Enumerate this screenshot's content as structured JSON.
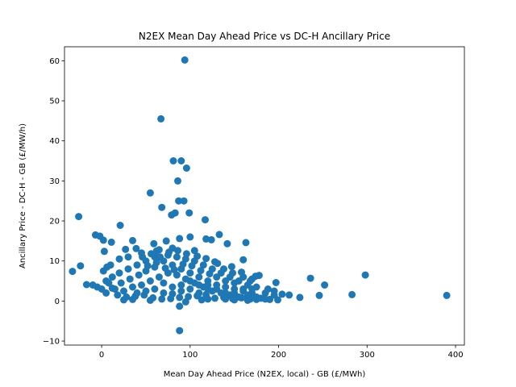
{
  "chart_data": {
    "type": "scatter",
    "title": "N2EX Mean Day Ahead Price vs DC-H Ancillary Price",
    "xlabel": "Mean Day Ahead Price (N2EX, local) - GB (£/MWh)",
    "ylabel": "Ancillary Price - DC-H - GB (£/MW/h)",
    "xlim": [
      -42,
      410
    ],
    "ylim": [
      -11,
      63.5
    ],
    "xticks": [
      0,
      100,
      200,
      300,
      400
    ],
    "yticks": [
      -10,
      0,
      10,
      20,
      30,
      40,
      50,
      60
    ],
    "grid": false,
    "color": "#1f77b4",
    "points": [
      [
        94,
        60.2
      ],
      [
        67,
        45.5
      ],
      [
        81,
        35
      ],
      [
        90,
        35
      ],
      [
        96,
        33.2
      ],
      [
        86,
        30
      ],
      [
        55,
        27
      ],
      [
        87,
        25
      ],
      [
        93,
        25
      ],
      [
        68,
        23.4
      ],
      [
        99,
        22
      ],
      [
        79,
        21.5
      ],
      [
        83,
        22
      ],
      [
        -26,
        21.1
      ],
      [
        117,
        20.3
      ],
      [
        21,
        18.9
      ],
      [
        -7,
        16.5
      ],
      [
        -2,
        16.2
      ],
      [
        35,
        15.1
      ],
      [
        2,
        15.2
      ],
      [
        11,
        14.7
      ],
      [
        88,
        15.6
      ],
      [
        100,
        16
      ],
      [
        133,
        16.6
      ],
      [
        118,
        15.5
      ],
      [
        124,
        15.3
      ],
      [
        142,
        14.3
      ],
      [
        163,
        14.6
      ],
      [
        59,
        14.3
      ],
      [
        73,
        15
      ],
      [
        80,
        13.2
      ],
      [
        -24,
        8.8
      ],
      [
        -33,
        7.4
      ],
      [
        -17,
        4.1
      ],
      [
        3,
        12.4
      ],
      [
        27,
        12.9
      ],
      [
        39,
        13.1
      ],
      [
        62,
        12.5
      ],
      [
        105,
        12.6
      ],
      [
        131,
        9.4
      ],
      [
        147,
        8.6
      ],
      [
        160,
        10.3
      ],
      [
        178,
        6.4
      ],
      [
        188,
        3
      ],
      [
        197,
        4.6
      ],
      [
        204,
        1.7
      ],
      [
        212,
        1.5
      ],
      [
        224,
        0.9
      ],
      [
        236,
        5.7
      ],
      [
        246,
        1.4
      ],
      [
        252,
        4
      ],
      [
        283,
        1.6
      ],
      [
        298,
        6.5
      ],
      [
        390,
        1.4
      ],
      [
        88,
        -7.4
      ],
      [
        88,
        -1.3
      ],
      [
        113,
        0.3
      ],
      [
        120,
        0.5
      ],
      [
        95,
        -0.2
      ],
      [
        5,
        5
      ],
      [
        12,
        6
      ],
      [
        20,
        7
      ],
      [
        30,
        8
      ],
      [
        40,
        9
      ],
      [
        50,
        10
      ],
      [
        60,
        11
      ],
      [
        70,
        10
      ],
      [
        80,
        9
      ],
      [
        90,
        8
      ],
      [
        100,
        7
      ],
      [
        110,
        6
      ],
      [
        120,
        5
      ],
      [
        130,
        4
      ],
      [
        140,
        3.5
      ],
      [
        150,
        3
      ],
      [
        160,
        2.5
      ],
      [
        170,
        2
      ],
      [
        5,
        2
      ],
      [
        15,
        3
      ],
      [
        25,
        2.5
      ],
      [
        35,
        3.5
      ],
      [
        45,
        4
      ],
      [
        55,
        5
      ],
      [
        65,
        6
      ],
      [
        75,
        7
      ],
      [
        85,
        6.5
      ],
      [
        95,
        5.5
      ],
      [
        105,
        4.5
      ],
      [
        115,
        3.5
      ],
      [
        125,
        2.5
      ],
      [
        135,
        2
      ],
      [
        145,
        1.5
      ],
      [
        155,
        1
      ],
      [
        165,
        1.5
      ],
      [
        175,
        1
      ],
      [
        10,
        9
      ],
      [
        20,
        10.5
      ],
      [
        30,
        11
      ],
      [
        45,
        12
      ],
      [
        65,
        12.8
      ],
      [
        75,
        11.5
      ],
      [
        85,
        11
      ],
      [
        95,
        10.5
      ],
      [
        105,
        10
      ],
      [
        115,
        9
      ],
      [
        125,
        8
      ],
      [
        135,
        7
      ],
      [
        145,
        6
      ],
      [
        155,
        5
      ],
      [
        165,
        4
      ],
      [
        175,
        3.5
      ],
      [
        0,
        3
      ],
      [
        8,
        4.5
      ],
      [
        18,
        1.5
      ],
      [
        28,
        1
      ],
      [
        38,
        1.2
      ],
      [
        48,
        1.5
      ],
      [
        58,
        0.8
      ],
      [
        68,
        0.5
      ],
      [
        78,
        0.6
      ],
      [
        88,
        0.9
      ],
      [
        98,
        1.1
      ],
      [
        108,
        1.3
      ],
      [
        118,
        1.6
      ],
      [
        128,
        0.7
      ],
      [
        138,
        0.9
      ],
      [
        148,
        0.6
      ],
      [
        158,
        0.8
      ],
      [
        168,
        0.5
      ],
      [
        180,
        0.7
      ],
      [
        190,
        0.4
      ],
      [
        199,
        0.3
      ],
      [
        -5,
        3.5
      ],
      [
        -10,
        4
      ],
      [
        2,
        7.5
      ],
      [
        6,
        8.5
      ],
      [
        50,
        7.5
      ],
      [
        60,
        8.5
      ],
      [
        70,
        4.5
      ],
      [
        80,
        3.5
      ],
      [
        90,
        2.5
      ],
      [
        100,
        3
      ],
      [
        110,
        2
      ],
      [
        120,
        3
      ],
      [
        130,
        6
      ],
      [
        140,
        5
      ],
      [
        150,
        4.5
      ],
      [
        160,
        6
      ],
      [
        170,
        5.5
      ],
      [
        185,
        2
      ],
      [
        195,
        2.5
      ],
      [
        185,
        0.5
      ],
      [
        195,
        1.5
      ],
      [
        72,
        8.2
      ],
      [
        82,
        7.8
      ],
      [
        92,
        9.2
      ],
      [
        102,
        8.8
      ],
      [
        112,
        7.6
      ],
      [
        122,
        6.8
      ],
      [
        62,
        9.6
      ],
      [
        52,
        8.8
      ],
      [
        42,
        6.5
      ],
      [
        32,
        5.5
      ],
      [
        22,
        4.5
      ],
      [
        12,
        3.2
      ],
      [
        40,
        2
      ],
      [
        50,
        2.5
      ],
      [
        60,
        3
      ],
      [
        70,
        2
      ],
      [
        80,
        1.8
      ],
      [
        90,
        4
      ],
      [
        100,
        5
      ],
      [
        110,
        4
      ],
      [
        120,
        4
      ],
      [
        130,
        3
      ],
      [
        140,
        2
      ],
      [
        150,
        2
      ],
      [
        160,
        3
      ],
      [
        170,
        3
      ],
      [
        140,
        0.5
      ],
      [
        150,
        0.3
      ],
      [
        165,
        0.2
      ],
      [
        175,
        0.4
      ],
      [
        55,
        0.2
      ],
      [
        35,
        0.4
      ],
      [
        25,
        0.3
      ],
      [
        46,
        11
      ],
      [
        56,
        11.8
      ],
      [
        66,
        11
      ],
      [
        76,
        12.2
      ],
      [
        86,
        12.6
      ],
      [
        96,
        11.8
      ],
      [
        108,
        11.2
      ],
      [
        118,
        10.6
      ],
      [
        128,
        9.8
      ],
      [
        138,
        8
      ],
      [
        148,
        7
      ],
      [
        158,
        7.2
      ],
      [
        168,
        5
      ],
      [
        174,
        6.2
      ]
    ]
  }
}
